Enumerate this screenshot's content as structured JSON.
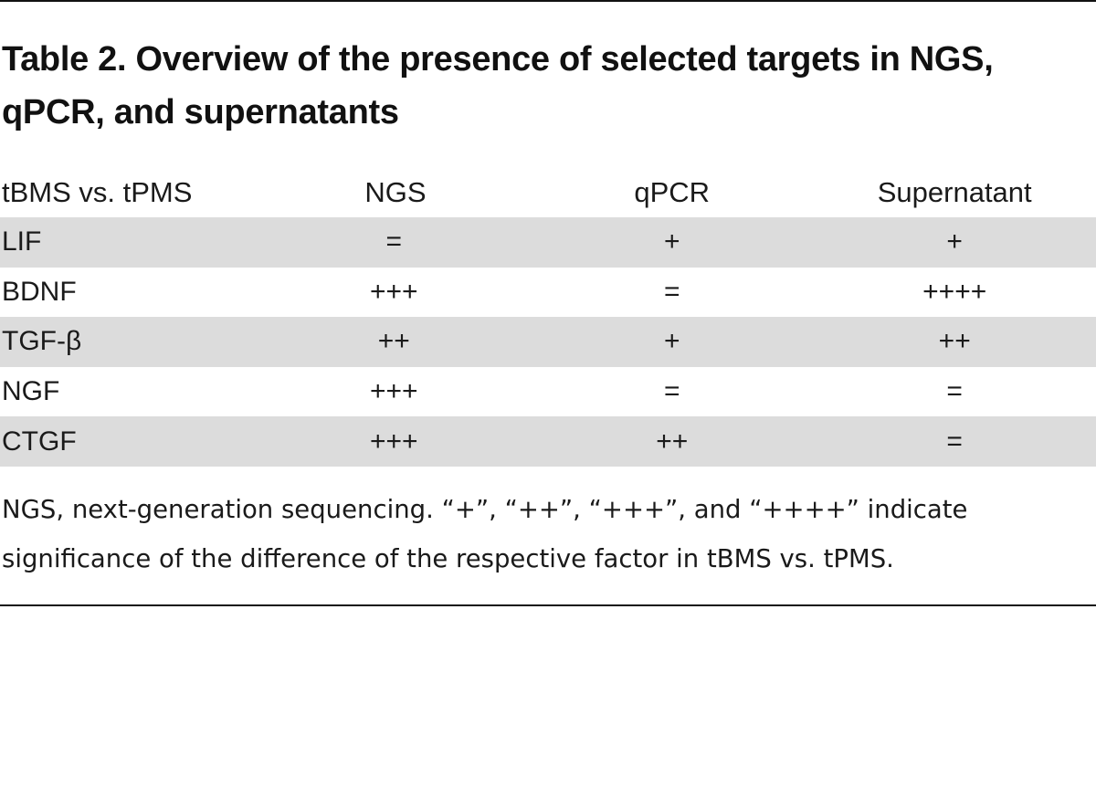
{
  "caption": "Table 2. Overview of the presence of selected targets in NGS, qPCR, and supernatants",
  "table": {
    "headers": [
      "tBMS vs. tPMS",
      "NGS",
      "qPCR",
      "Supernatant"
    ],
    "rows": [
      [
        "LIF",
        "=",
        "+",
        "+"
      ],
      [
        "BDNF",
        "+++",
        "=",
        "++++"
      ],
      [
        "TGF-β",
        "++",
        "+",
        "++"
      ],
      [
        "NGF",
        "+++",
        "=",
        "="
      ],
      [
        "CTGF",
        "+++",
        "++",
        "="
      ]
    ]
  },
  "footnote": "NGS, next-generation sequencing. “+”, “++”, “+++”, and “++++” indicate significance of the difference of the respective factor in tBMS vs. tPMS."
}
